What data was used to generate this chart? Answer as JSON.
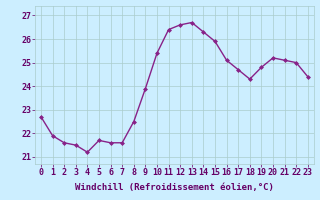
{
  "x": [
    0,
    1,
    2,
    3,
    4,
    5,
    6,
    7,
    8,
    9,
    10,
    11,
    12,
    13,
    14,
    15,
    16,
    17,
    18,
    19,
    20,
    21,
    22,
    23
  ],
  "y": [
    22.7,
    21.9,
    21.6,
    21.5,
    21.2,
    21.7,
    21.6,
    21.6,
    22.5,
    23.9,
    25.4,
    26.4,
    26.6,
    26.7,
    26.3,
    25.9,
    25.1,
    24.7,
    24.3,
    24.8,
    25.2,
    25.1,
    25.0,
    24.4
  ],
  "line_color": "#882288",
  "marker": "D",
  "marker_size": 2.0,
  "bg_color": "#cceeff",
  "grid_color": "#aacccc",
  "xlabel": "Windchill (Refroidissement éolien,°C)",
  "xlabel_fontsize": 6.5,
  "yticks": [
    21,
    22,
    23,
    24,
    25,
    26,
    27
  ],
  "xticks": [
    0,
    1,
    2,
    3,
    4,
    5,
    6,
    7,
    8,
    9,
    10,
    11,
    12,
    13,
    14,
    15,
    16,
    17,
    18,
    19,
    20,
    21,
    22,
    23
  ],
  "ylim": [
    20.7,
    27.4
  ],
  "xlim": [
    -0.5,
    23.5
  ],
  "tick_fontsize": 6.0,
  "tick_color": "#660066",
  "line_width": 1.0
}
